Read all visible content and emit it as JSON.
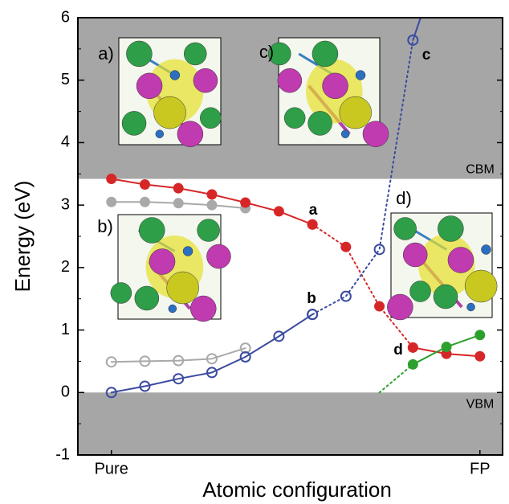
{
  "chart_data": {
    "type": "line",
    "xlabel": "Atomic configuration",
    "ylabel": "Energy (eV)",
    "xlim": [
      -1,
      11.7
    ],
    "ylim": [
      -1,
      6
    ],
    "xticks": [
      {
        "value": 0,
        "label": "Pure"
      },
      {
        "value": 11,
        "label": "FP"
      }
    ],
    "yticks": [
      -1,
      0,
      1,
      2,
      3,
      4,
      5,
      6
    ],
    "bands": [
      [
        -1,
        0
      ],
      [
        3.42,
        6
      ]
    ],
    "band_color": "#a6a6a6",
    "band_labels": [
      "VBM",
      "CBM"
    ],
    "point_labels": [
      "a",
      "b",
      "c",
      "d"
    ],
    "insets": [
      "a)",
      "b)",
      "c)",
      "d)"
    ],
    "series": [
      {
        "color": "#a9a9a9",
        "dash": false,
        "marker": "filled",
        "x": [
          0,
          1,
          2,
          3,
          4
        ],
        "values": [
          3.05,
          3.05,
          3.03,
          3.0,
          2.95
        ]
      },
      {
        "color": "#a9a9a9",
        "dash": false,
        "marker": "open",
        "x": [
          0,
          1,
          2,
          3,
          4
        ],
        "values": [
          0.49,
          0.5,
          0.51,
          0.54,
          0.71
        ]
      },
      {
        "color": "#d62728",
        "dash": false,
        "marker": "filled",
        "x": [
          0,
          1,
          2,
          3,
          4,
          5,
          6
        ],
        "values": [
          3.42,
          3.33,
          3.27,
          3.17,
          3.04,
          2.9,
          2.69
        ]
      },
      {
        "color": "#d62728",
        "dash": true,
        "marker": "filled",
        "x": [
          6,
          7,
          8,
          9
        ],
        "values": [
          2.69,
          2.33,
          1.38,
          0.72
        ]
      },
      {
        "color": "#d62728",
        "dash": false,
        "marker": "filled",
        "x": [
          9,
          10,
          11
        ],
        "values": [
          0.72,
          0.62,
          0.58
        ]
      },
      {
        "color": "#3b4ba0",
        "dash": false,
        "marker": "open",
        "x": [
          0,
          1,
          2,
          3,
          4,
          5,
          6
        ],
        "values": [
          0,
          0.1,
          0.22,
          0.32,
          0.57,
          0.9,
          1.25
        ]
      },
      {
        "color": "#3b4ba0",
        "dash": true,
        "marker": "open",
        "x": [
          6,
          7,
          8,
          9
        ],
        "values": [
          1.25,
          1.54,
          2.29,
          5.64
        ]
      },
      {
        "color": "#3b4ba0",
        "dash": false,
        "marker": "none",
        "x": [
          9,
          9.23
        ],
        "values": [
          5.64,
          6
        ]
      },
      {
        "color": "#2ca02c",
        "dash": true,
        "marker": "none",
        "x": [
          8,
          9
        ],
        "values": [
          0,
          0.45
        ]
      },
      {
        "color": "#2ca02c",
        "dash": false,
        "marker": "filled",
        "x": [
          9,
          10,
          11
        ],
        "values": [
          0.45,
          0.73,
          0.92
        ]
      }
    ]
  }
}
